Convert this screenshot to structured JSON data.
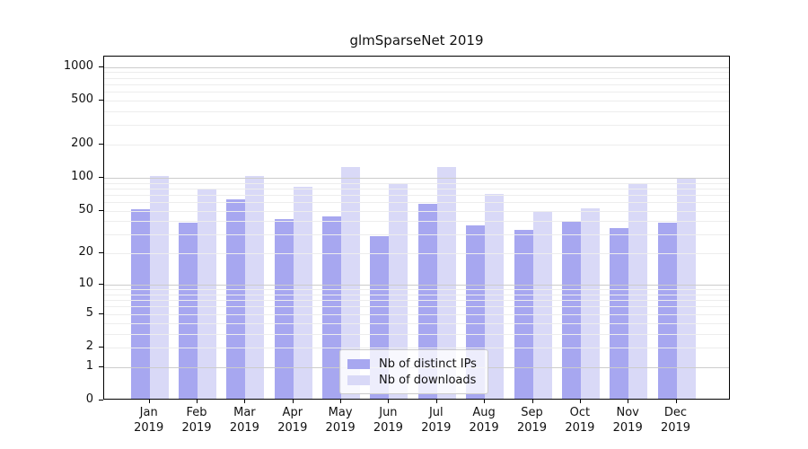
{
  "title": "glmSparseNet 2019",
  "chart_data": {
    "type": "bar",
    "title": "glmSparseNet 2019",
    "categories": [
      "Jan",
      "Feb",
      "Mar",
      "Apr",
      "May",
      "Jun",
      "Jul",
      "Aug",
      "Sep",
      "Oct",
      "Nov",
      "Dec"
    ],
    "category_year": "2019",
    "series": [
      {
        "name": "Nb of distinct IPs",
        "color": "#a7a7f0",
        "values": [
          50,
          37,
          61,
          40,
          43,
          28,
          56,
          35,
          32,
          38,
          33,
          37
        ]
      },
      {
        "name": "Nb of downloads",
        "color": "#d9d9f7",
        "values": [
          100,
          76,
          100,
          80,
          120,
          84,
          120,
          68,
          47,
          51,
          84,
          94
        ]
      }
    ],
    "xlabel": "",
    "ylabel": "",
    "yscale": "log1p",
    "yticks": [
      0,
      1,
      2,
      5,
      10,
      20,
      50,
      100,
      200,
      500,
      1000
    ],
    "ylim": [
      0,
      1240
    ],
    "grid": {
      "on": true,
      "major_color": "#cccccc",
      "minor_color": "#ededed",
      "minor_subs": [
        2,
        3,
        4,
        5,
        6,
        7,
        8,
        9
      ]
    },
    "legend": {
      "position": "lower-center",
      "entries": [
        "Nb of distinct IPs",
        "Nb of downloads"
      ]
    }
  }
}
